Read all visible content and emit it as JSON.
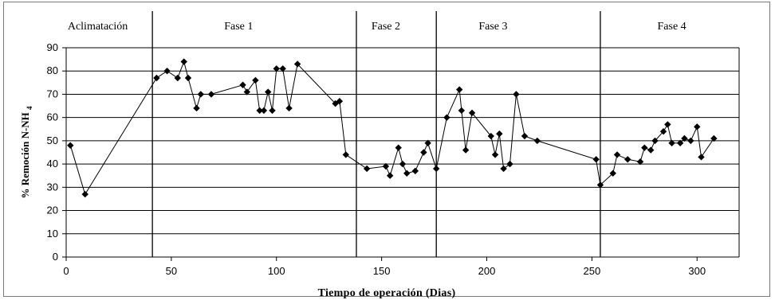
{
  "chart_data": {
    "type": "scatter",
    "xlabel": "Tiempo de operación (Dias)",
    "ylabel": "% Remoción N-NH",
    "ylabel_sub": "4",
    "xlim": [
      0,
      320
    ],
    "ylim": [
      0,
      90
    ],
    "xticks": [
      0,
      50,
      100,
      150,
      200,
      250,
      300
    ],
    "yticks": [
      0,
      10,
      20,
      30,
      40,
      50,
      60,
      70,
      80,
      90
    ],
    "grid": "horizontal",
    "line_color": "#000000",
    "marker": "diamond",
    "phase_boundaries": [
      41,
      138,
      176,
      254
    ],
    "phases": [
      {
        "label": "Aclimatación",
        "x_center": 15
      },
      {
        "label": "Fase 1",
        "x_center": 82
      },
      {
        "label": "Fase 2",
        "x_center": 152
      },
      {
        "label": "Fase 3",
        "x_center": 203
      },
      {
        "label": "Fase 4",
        "x_center": 288
      }
    ],
    "series": [
      {
        "x": [
          2,
          9,
          43,
          48,
          53,
          56,
          58,
          62,
          64,
          69,
          84,
          86,
          90,
          92,
          94,
          96,
          98,
          100,
          103,
          106,
          110,
          128,
          130,
          133,
          143,
          152,
          154,
          158,
          160,
          162,
          166,
          170,
          172,
          176,
          181,
          187,
          188,
          190,
          193,
          202,
          204,
          206,
          208,
          211,
          214,
          218,
          224,
          252,
          254,
          260,
          262,
          267,
          273,
          275,
          278,
          280,
          284,
          286,
          288,
          292,
          294,
          297,
          300,
          302,
          308
        ],
        "y": [
          48,
          27,
          77,
          80,
          77,
          84,
          77,
          64,
          70,
          70,
          74,
          71,
          76,
          63,
          63,
          71,
          63,
          81,
          81,
          64,
          83,
          66,
          67,
          44,
          38,
          39,
          35,
          47,
          40,
          36,
          37,
          45,
          49,
          38,
          60,
          72,
          63,
          46,
          62,
          52,
          44,
          53,
          38,
          40,
          70,
          52,
          50,
          42,
          31,
          36,
          44,
          42,
          41,
          47,
          46,
          50,
          54,
          57,
          49,
          49,
          51,
          50,
          56,
          43,
          51
        ]
      }
    ]
  }
}
